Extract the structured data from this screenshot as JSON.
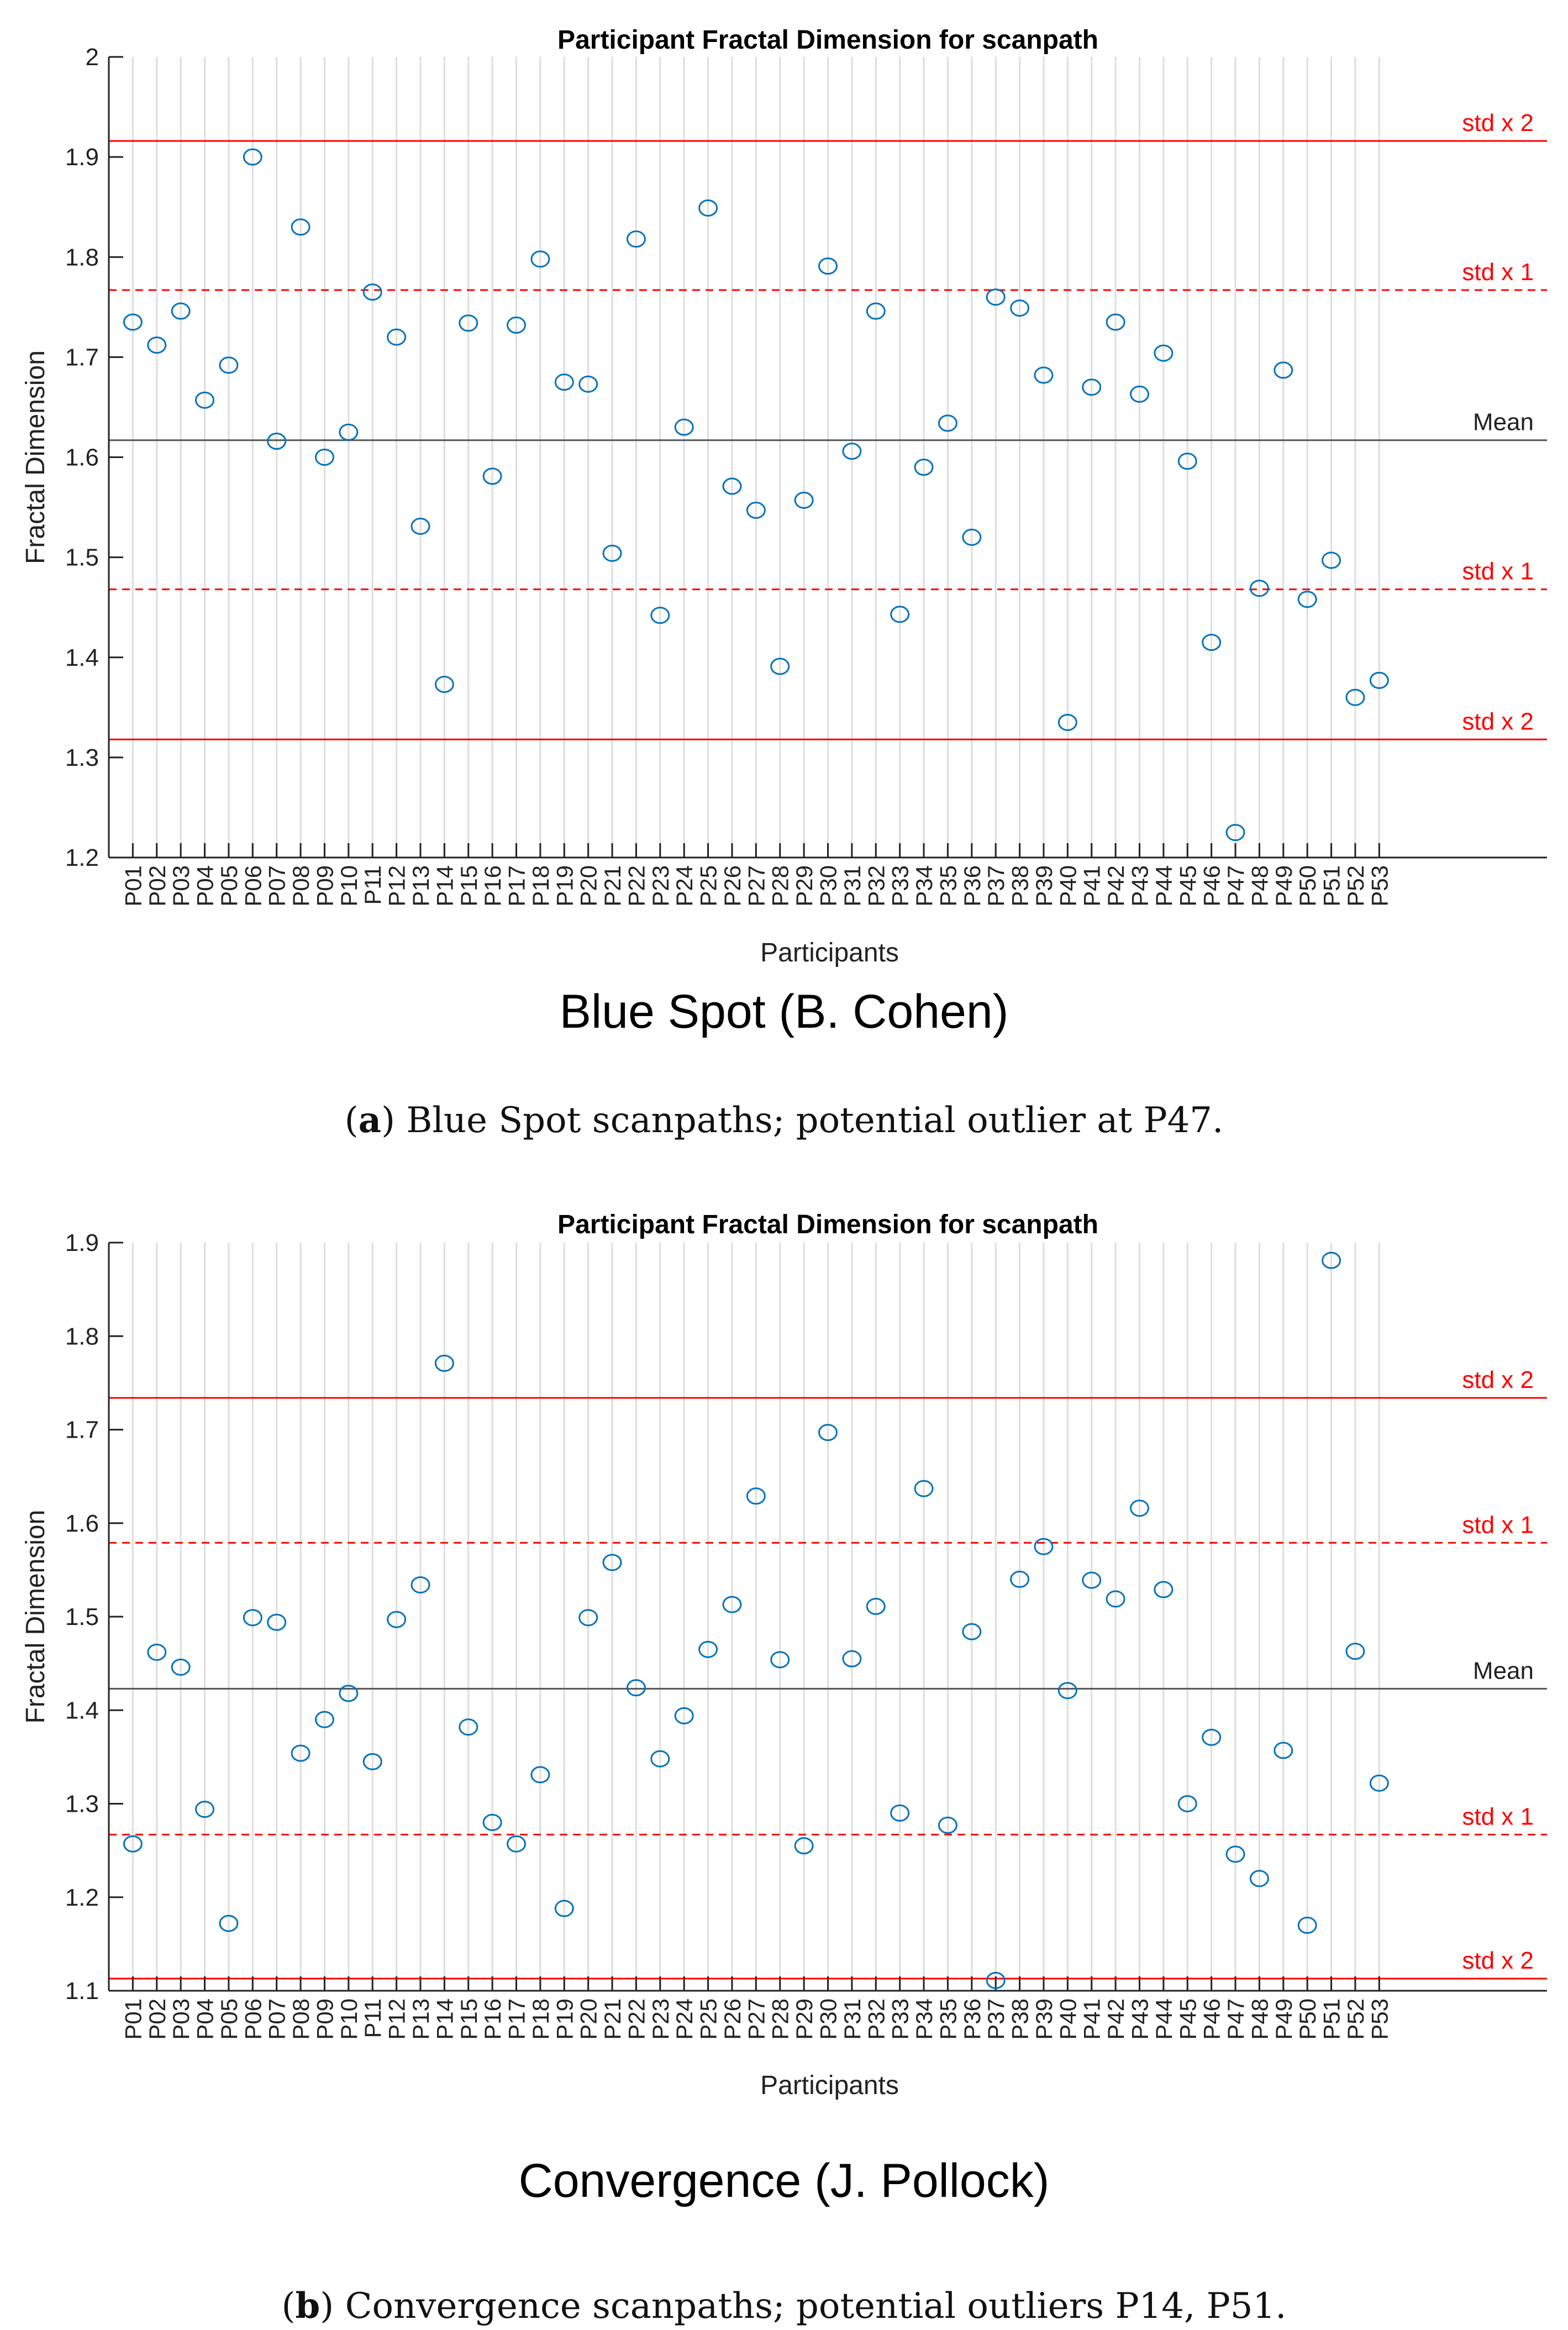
{
  "participants": [
    "P01",
    "P02",
    "P03",
    "P04",
    "P05",
    "P06",
    "P07",
    "P08",
    "P09",
    "P10",
    "P11",
    "P12",
    "P13",
    "P14",
    "P15",
    "P16",
    "P17",
    "P18",
    "P19",
    "P20",
    "P21",
    "P22",
    "P23",
    "P24",
    "P25",
    "P26",
    "P27",
    "P28",
    "P29",
    "P30",
    "P31",
    "P32",
    "P33",
    "P34",
    "P35",
    "P36",
    "P37",
    "P38",
    "P39",
    "P40",
    "P41",
    "P42",
    "P43",
    "P44",
    "P45",
    "P46",
    "P47",
    "P48",
    "P49",
    "P50",
    "P51",
    "P52",
    "P53"
  ],
  "colors": {
    "marker": "#0072BD",
    "std": "#FF0000",
    "mean": "#555555",
    "grid": "#DDDDDD"
  },
  "chart_data": [
    {
      "type": "scatter",
      "title": "Participant Fractal Dimension for scanpath",
      "xlabel": "Participants",
      "ylabel": "Fractal Dimension",
      "ylim": [
        1.2,
        2.0
      ],
      "yticks": [
        "1.2",
        "1.3",
        "1.4",
        "1.5",
        "1.6",
        "1.7",
        "1.8",
        "1.9",
        "2"
      ],
      "grid": "vertical",
      "values": [
        1.735,
        1.712,
        1.746,
        1.657,
        1.692,
        1.9,
        1.616,
        1.83,
        1.6,
        1.625,
        1.765,
        1.72,
        1.531,
        1.373,
        1.734,
        1.581,
        1.732,
        1.798,
        1.675,
        1.673,
        1.504,
        1.818,
        1.442,
        1.63,
        1.849,
        1.571,
        1.547,
        1.391,
        1.557,
        1.791,
        1.606,
        1.746,
        1.443,
        1.59,
        1.634,
        1.52,
        1.76,
        1.749,
        1.682,
        1.335,
        1.67,
        1.735,
        1.663,
        1.704,
        1.596,
        1.415,
        1.225,
        1.469,
        1.687,
        1.458,
        1.497,
        1.36,
        1.377
      ],
      "reference_lines": [
        {
          "label": "std x 2",
          "value": 1.916,
          "kind": "std2"
        },
        {
          "label": "std x 1",
          "value": 1.767,
          "kind": "std1"
        },
        {
          "label": "Mean",
          "value": 1.617,
          "kind": "mean"
        },
        {
          "label": "std x 1",
          "value": 1.468,
          "kind": "std1"
        },
        {
          "label": "std x 2",
          "value": 1.318,
          "kind": "std2"
        }
      ],
      "artwork_title": "Blue Spot (B. Cohen)",
      "caption_label": "a",
      "caption_text": "Blue Spot scanpaths; potential outlier at P47."
    },
    {
      "type": "scatter",
      "title": "Participant Fractal Dimension for scanpath",
      "xlabel": "Participants",
      "ylabel": "Fractal Dimension",
      "ylim": [
        1.1,
        1.9
      ],
      "yticks": [
        "1.1",
        "1.2",
        "1.3",
        "1.4",
        "1.5",
        "1.6",
        "1.7",
        "1.8",
        "1.9"
      ],
      "grid": "vertical",
      "values": [
        1.257,
        1.462,
        1.446,
        1.294,
        1.172,
        1.499,
        1.494,
        1.354,
        1.39,
        1.418,
        1.345,
        1.497,
        1.534,
        1.771,
        1.382,
        1.28,
        1.257,
        1.331,
        1.188,
        1.499,
        1.558,
        1.424,
        1.348,
        1.394,
        1.465,
        1.513,
        1.629,
        1.454,
        1.255,
        1.697,
        1.455,
        1.511,
        1.29,
        1.637,
        1.277,
        1.484,
        1.111,
        1.54,
        1.575,
        1.421,
        1.539,
        1.519,
        1.616,
        1.529,
        1.3,
        1.371,
        1.246,
        1.22,
        1.357,
        1.17,
        1.881,
        1.463,
        1.322
      ],
      "reference_lines": [
        {
          "label": "std x 2",
          "value": 1.734,
          "kind": "std2"
        },
        {
          "label": "std x 1",
          "value": 1.579,
          "kind": "std1"
        },
        {
          "label": "Mean",
          "value": 1.423,
          "kind": "mean"
        },
        {
          "label": "std x 1",
          "value": 1.267,
          "kind": "std1"
        },
        {
          "label": "std x 2",
          "value": 1.113,
          "kind": "std2"
        }
      ],
      "artwork_title": "Convergence (J. Pollock)",
      "caption_label": "b",
      "caption_text": "Convergence scanpaths; potential outliers P14, P51."
    }
  ]
}
